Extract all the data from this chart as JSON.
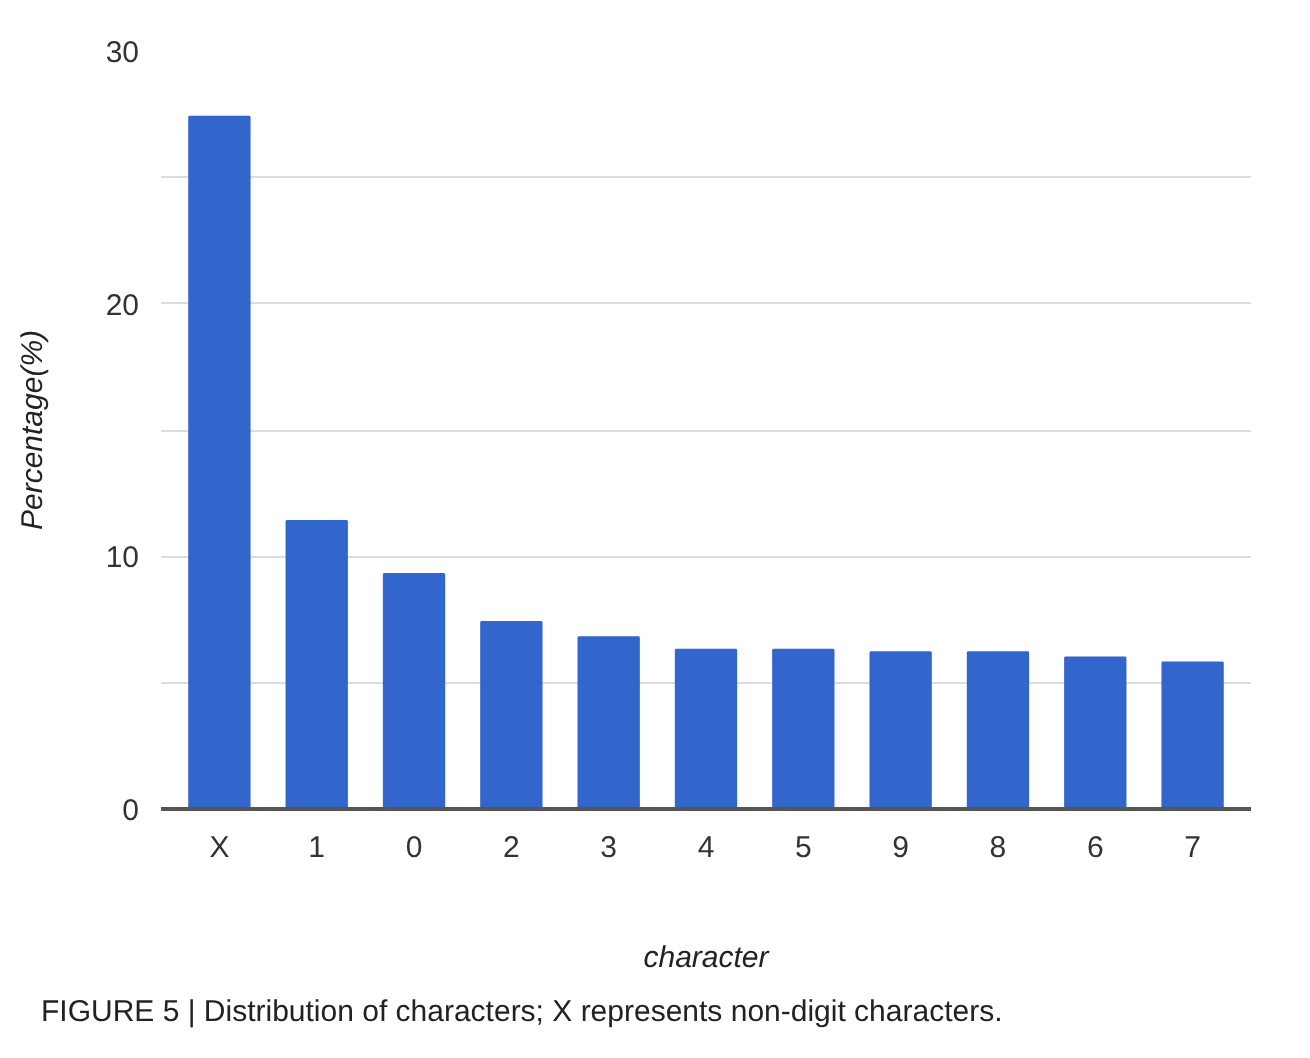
{
  "chart_data": {
    "type": "bar",
    "xlabel": "character",
    "ylabel": "Percentage(%)",
    "categories": [
      "X",
      "1",
      "0",
      "2",
      "3",
      "4",
      "5",
      "9",
      "8",
      "6",
      "7"
    ],
    "values": [
      27.4,
      11.4,
      9.3,
      7.4,
      6.8,
      6.3,
      6.3,
      6.2,
      6.2,
      6.0,
      5.8
    ],
    "color": "#3366cc",
    "ylim": [
      0,
      30
    ],
    "yticks": [
      0,
      {
        "value": 5,
        "label": null
      },
      10,
      {
        "value": 15,
        "label": null
      },
      20,
      {
        "value": 25,
        "label": null
      },
      30
    ],
    "grid": "y",
    "annotations": [
      "FIGURE 5 | Distribution of characters; X represents non-digit characters."
    ]
  }
}
